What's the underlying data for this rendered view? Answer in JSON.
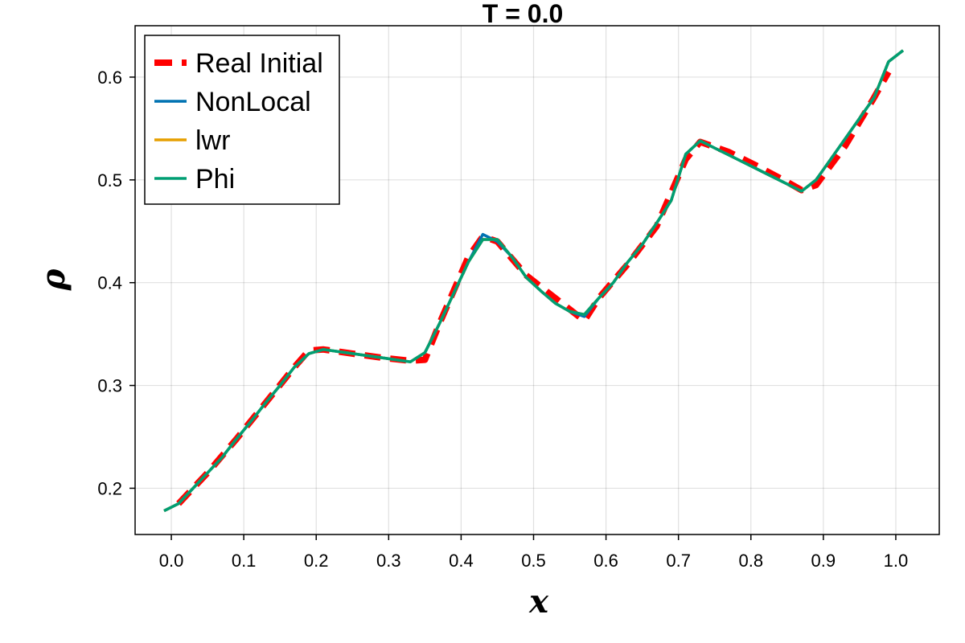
{
  "chart_data": {
    "type": "line",
    "title": "T = 0.0",
    "xlabel": "x",
    "ylabel": "ρ",
    "xlim": [
      -0.05,
      1.06
    ],
    "ylim": [
      0.155,
      0.65
    ],
    "x_ticks": [
      0.0,
      0.1,
      0.2,
      0.3,
      0.4,
      0.5,
      0.6,
      0.7,
      0.8,
      0.9,
      1.0
    ],
    "y_ticks": [
      0.2,
      0.3,
      0.4,
      0.5,
      0.6
    ],
    "grid": true,
    "legend_position": "top-left",
    "series": [
      {
        "name": "Real Initial",
        "color": "#ff0000",
        "style": "dashed",
        "x": [
          0.01,
          0.05,
          0.09,
          0.13,
          0.17,
          0.19,
          0.21,
          0.25,
          0.29,
          0.33,
          0.35,
          0.37,
          0.41,
          0.43,
          0.45,
          0.49,
          0.53,
          0.57,
          0.59,
          0.63,
          0.67,
          0.71,
          0.73,
          0.77,
          0.81,
          0.85,
          0.87,
          0.89,
          0.93,
          0.97,
          0.99
        ],
        "y": [
          0.185,
          0.215,
          0.248,
          0.283,
          0.318,
          0.334,
          0.335,
          0.331,
          0.327,
          0.324,
          0.325,
          0.36,
          0.425,
          0.445,
          0.44,
          0.407,
          0.385,
          0.363,
          0.385,
          0.418,
          0.455,
          0.52,
          0.537,
          0.527,
          0.513,
          0.498,
          0.49,
          0.495,
          0.533,
          0.58,
          0.605
        ]
      },
      {
        "name": "NonLocal",
        "color": "#0072b2",
        "style": "solid",
        "x": [
          -0.01,
          0.01,
          0.03,
          0.05,
          0.07,
          0.09,
          0.11,
          0.13,
          0.15,
          0.17,
          0.19,
          0.21,
          0.23,
          0.25,
          0.27,
          0.29,
          0.31,
          0.33,
          0.35,
          0.37,
          0.39,
          0.41,
          0.43,
          0.45,
          0.47,
          0.49,
          0.51,
          0.53,
          0.55,
          0.57,
          0.59,
          0.61,
          0.63,
          0.65,
          0.67,
          0.69,
          0.71,
          0.73,
          0.75,
          0.77,
          0.79,
          0.81,
          0.83,
          0.85,
          0.87,
          0.89,
          0.91,
          0.93,
          0.95,
          0.97,
          0.99,
          1.01
        ],
        "y": [
          0.178,
          0.185,
          0.2,
          0.215,
          0.23,
          0.248,
          0.265,
          0.283,
          0.3,
          0.318,
          0.331,
          0.335,
          0.333,
          0.331,
          0.329,
          0.327,
          0.325,
          0.323,
          0.332,
          0.36,
          0.39,
          0.42,
          0.447,
          0.44,
          0.425,
          0.405,
          0.392,
          0.38,
          0.372,
          0.367,
          0.385,
          0.4,
          0.42,
          0.437,
          0.458,
          0.48,
          0.525,
          0.538,
          0.531,
          0.524,
          0.517,
          0.51,
          0.503,
          0.496,
          0.489,
          0.5,
          0.52,
          0.54,
          0.56,
          0.58,
          0.615,
          0.626
        ]
      },
      {
        "name": "lwr",
        "color": "#e69f00",
        "style": "solid",
        "x": [
          -0.01,
          0.01,
          0.03,
          0.05,
          0.07,
          0.09,
          0.11,
          0.13,
          0.15,
          0.17,
          0.19,
          0.21,
          0.23,
          0.25,
          0.27,
          0.29,
          0.31,
          0.33,
          0.35,
          0.37,
          0.39,
          0.41,
          0.43,
          0.45,
          0.47,
          0.49,
          0.51,
          0.53,
          0.55,
          0.57,
          0.59,
          0.61,
          0.63,
          0.65,
          0.67,
          0.69,
          0.71,
          0.73,
          0.75,
          0.77,
          0.79,
          0.81,
          0.83,
          0.85,
          0.87,
          0.89,
          0.91,
          0.93,
          0.95,
          0.97,
          0.99,
          1.01
        ],
        "y": [
          0.178,
          0.185,
          0.2,
          0.215,
          0.23,
          0.248,
          0.265,
          0.283,
          0.3,
          0.318,
          0.331,
          0.335,
          0.333,
          0.331,
          0.329,
          0.327,
          0.325,
          0.323,
          0.332,
          0.36,
          0.39,
          0.42,
          0.442,
          0.442,
          0.425,
          0.405,
          0.392,
          0.38,
          0.372,
          0.369,
          0.385,
          0.4,
          0.42,
          0.437,
          0.458,
          0.48,
          0.525,
          0.538,
          0.531,
          0.524,
          0.517,
          0.51,
          0.503,
          0.496,
          0.489,
          0.5,
          0.52,
          0.54,
          0.56,
          0.58,
          0.615,
          0.626
        ]
      },
      {
        "name": "Phi",
        "color": "#009e73",
        "style": "solid",
        "x": [
          -0.01,
          0.01,
          0.03,
          0.05,
          0.07,
          0.09,
          0.11,
          0.13,
          0.15,
          0.17,
          0.19,
          0.21,
          0.23,
          0.25,
          0.27,
          0.29,
          0.31,
          0.33,
          0.35,
          0.37,
          0.39,
          0.41,
          0.43,
          0.45,
          0.47,
          0.49,
          0.51,
          0.53,
          0.55,
          0.57,
          0.59,
          0.61,
          0.63,
          0.65,
          0.67,
          0.69,
          0.71,
          0.73,
          0.75,
          0.77,
          0.79,
          0.81,
          0.83,
          0.85,
          0.87,
          0.89,
          0.91,
          0.93,
          0.95,
          0.97,
          0.99,
          1.01
        ],
        "y": [
          0.178,
          0.185,
          0.2,
          0.215,
          0.23,
          0.248,
          0.265,
          0.283,
          0.3,
          0.318,
          0.331,
          0.335,
          0.333,
          0.331,
          0.329,
          0.327,
          0.325,
          0.323,
          0.332,
          0.36,
          0.39,
          0.42,
          0.442,
          0.442,
          0.425,
          0.405,
          0.392,
          0.38,
          0.372,
          0.369,
          0.385,
          0.4,
          0.42,
          0.437,
          0.458,
          0.48,
          0.525,
          0.538,
          0.531,
          0.524,
          0.517,
          0.51,
          0.503,
          0.496,
          0.489,
          0.5,
          0.52,
          0.54,
          0.56,
          0.58,
          0.615,
          0.626
        ]
      }
    ]
  }
}
